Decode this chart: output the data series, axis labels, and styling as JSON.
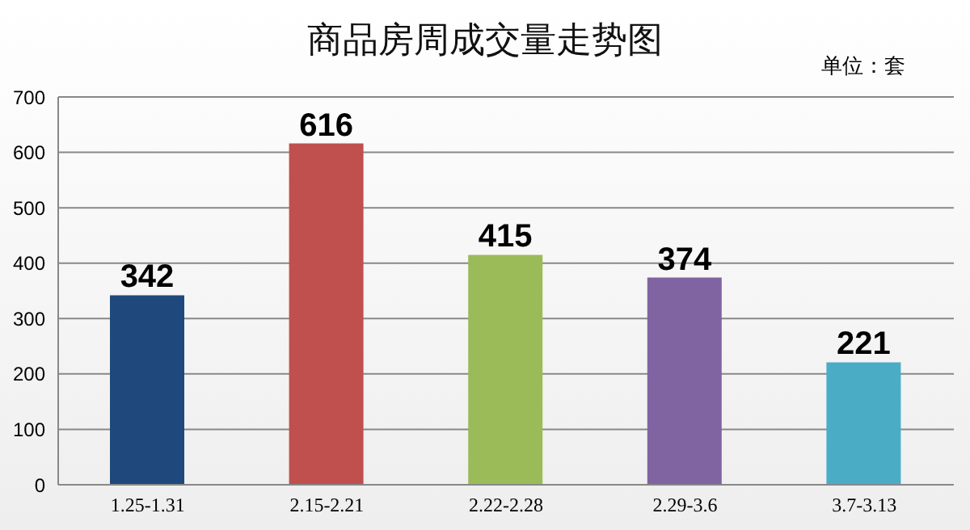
{
  "chart_data": {
    "type": "bar",
    "title": "商品房周成交量走势图",
    "annotations": [
      "单位：套"
    ],
    "categories": [
      "1.25-1.31",
      "2.15-2.21",
      "2.22-2.28",
      "2.29-3.6",
      "3.7-3.13"
    ],
    "values": [
      342,
      616,
      415,
      374,
      221
    ],
    "colors": [
      "#1f497d",
      "#c0504d",
      "#9bbb59",
      "#8064a2",
      "#4bacc6"
    ],
    "ylim": [
      0,
      700
    ],
    "yticks": [
      0,
      100,
      200,
      300,
      400,
      500,
      600,
      700
    ],
    "grid": "y",
    "data_labels": true
  }
}
